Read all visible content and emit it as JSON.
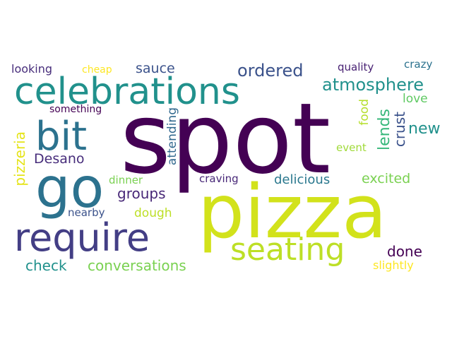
{
  "colors": {
    "dark_purple": "#440154",
    "indigo": "#433e85",
    "slate_blue": "#2c728e",
    "teal": "#21918c",
    "green": "#35b779",
    "light_green": "#7ad151",
    "lime": "#bddf26",
    "yellow": "#fde725"
  },
  "words": {
    "spot": "spot",
    "pizza": "pizza",
    "celebrations": "celebrations",
    "go": "go",
    "require": "require",
    "bit": "bit",
    "seating": "seating",
    "atmosphere": "atmosphere",
    "ordered": "ordered",
    "sauce": "sauce",
    "looking": "looking",
    "cheap": "cheap",
    "quality": "quality",
    "crazy": "crazy",
    "something": "something",
    "love": "love",
    "food": "food",
    "new": "new",
    "lends": "lends",
    "crust": "crust",
    "event": "event",
    "pizzeria": "pizzeria",
    "desano": "Desano",
    "attending": "attending",
    "dinner": "dinner",
    "craving": "craving",
    "delicious": "delicious",
    "excited": "excited",
    "groups": "groups",
    "dough": "dough",
    "nearby": "nearby",
    "check": "check",
    "conversations": "conversations",
    "done": "done",
    "slightly": "slightly"
  }
}
